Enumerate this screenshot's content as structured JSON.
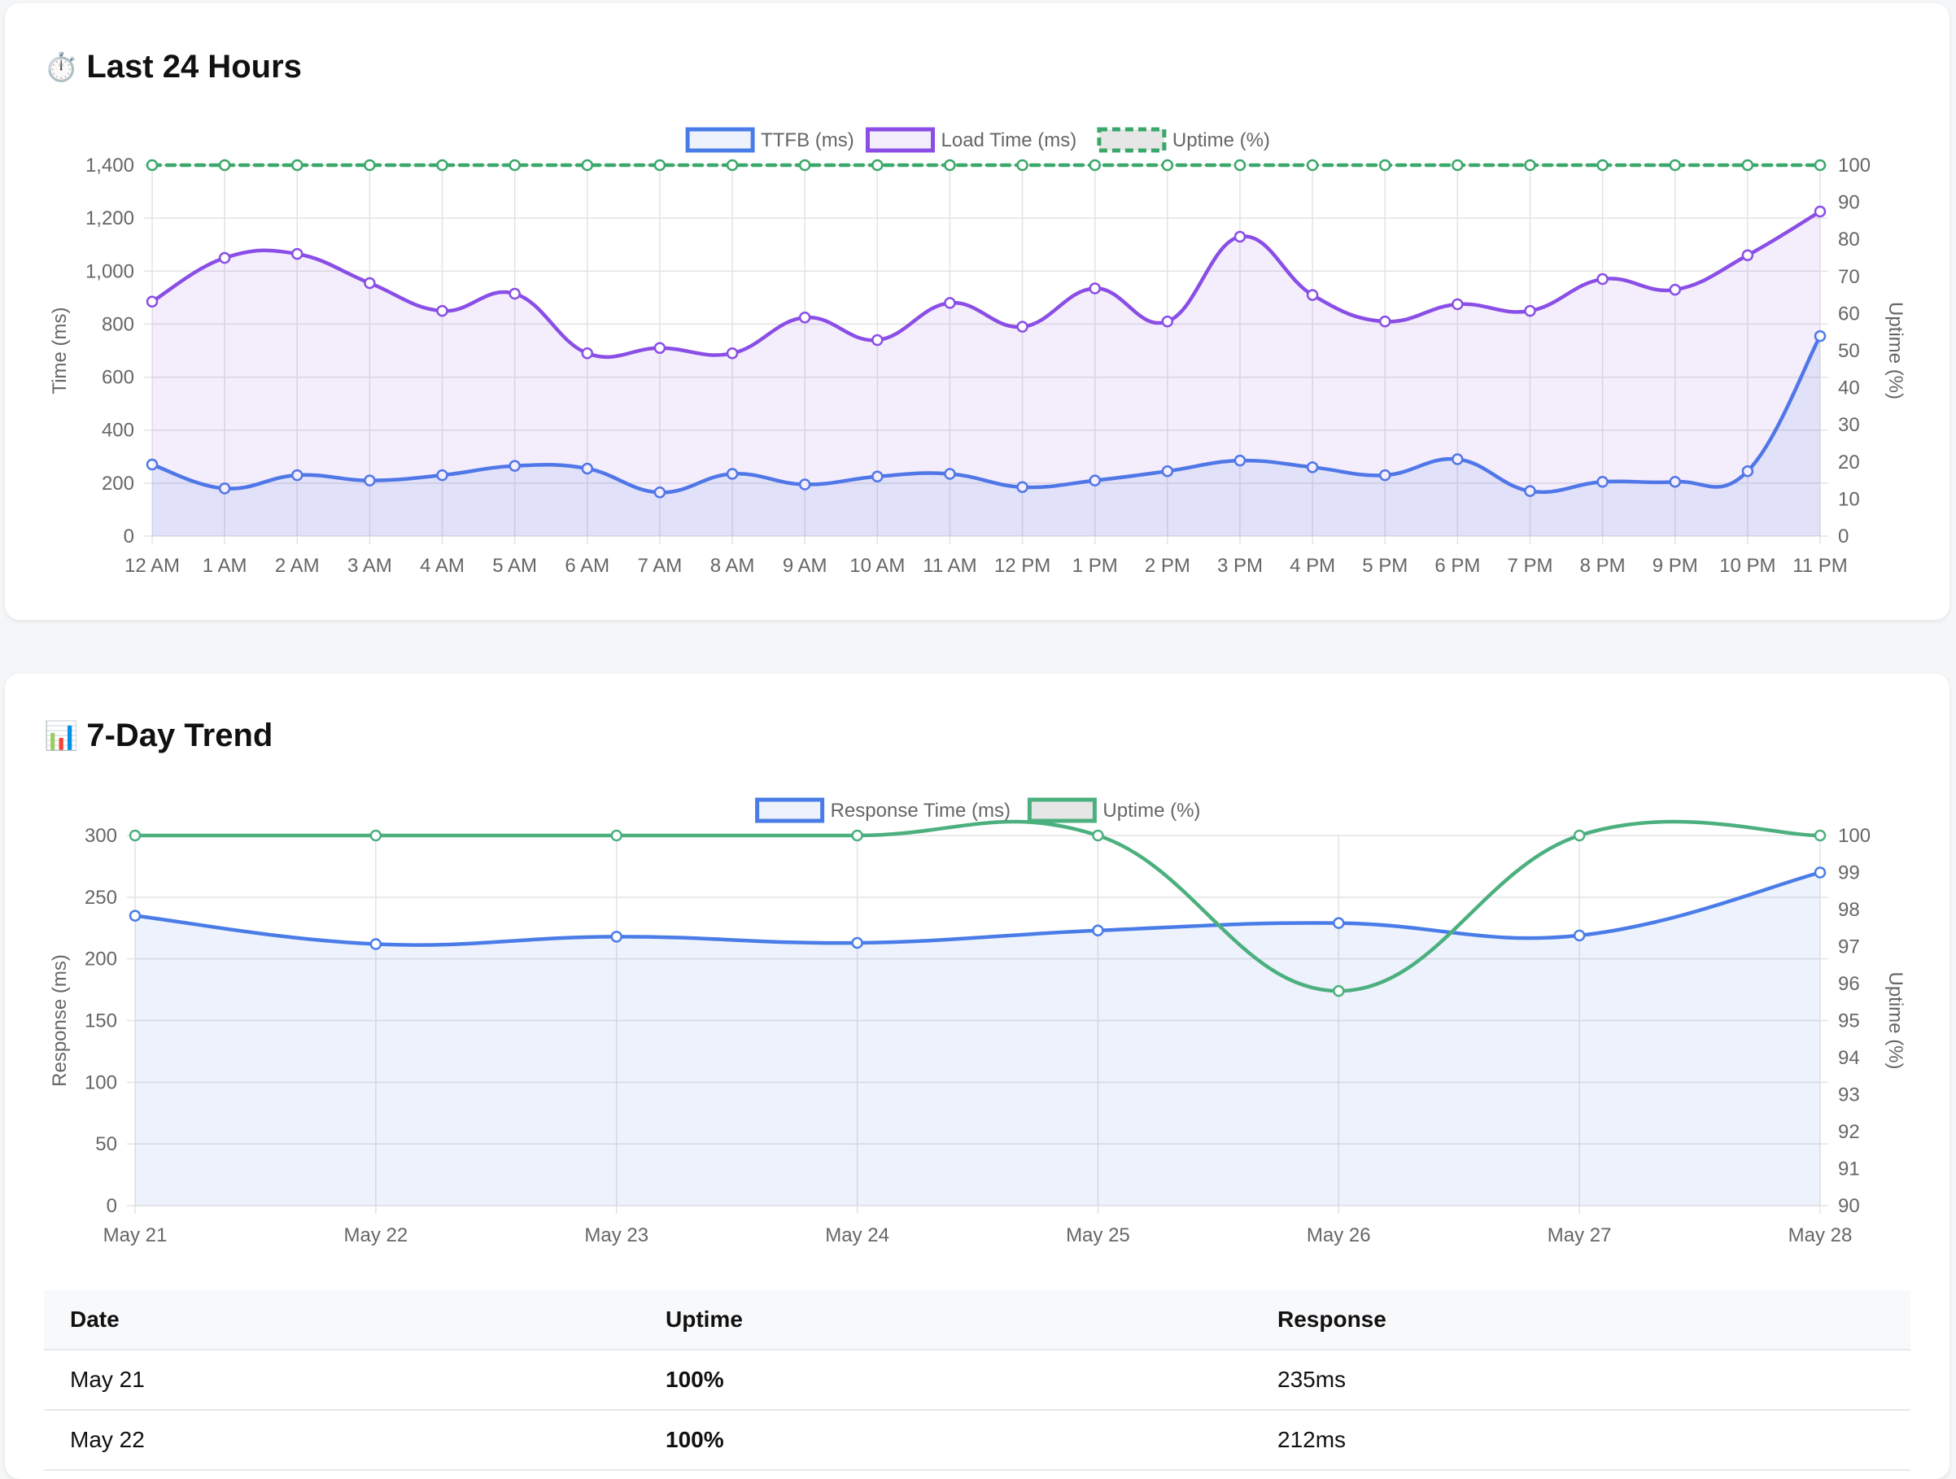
{
  "card1": {
    "icon": "⏱️",
    "icon_name": "stopwatch-icon",
    "title": "Last 24 Hours"
  },
  "card2": {
    "icon": "📊",
    "icon_name": "bar-chart-icon",
    "title": "7-Day Trend"
  },
  "chart_data": [
    {
      "type": "line",
      "x": [
        "12 AM",
        "1 AM",
        "2 AM",
        "3 AM",
        "4 AM",
        "5 AM",
        "6 AM",
        "7 AM",
        "8 AM",
        "9 AM",
        "10 AM",
        "11 AM",
        "12 PM",
        "1 PM",
        "2 PM",
        "3 PM",
        "4 PM",
        "5 PM",
        "6 PM",
        "7 PM",
        "8 PM",
        "9 PM",
        "10 PM",
        "11 PM"
      ],
      "series": [
        {
          "name": "TTFB (ms)",
          "axis": "left",
          "color": "#4a7ce8",
          "fill": true,
          "values": [
            270,
            180,
            230,
            210,
            230,
            265,
            255,
            165,
            235,
            195,
            225,
            235,
            185,
            210,
            245,
            285,
            260,
            230,
            290,
            170,
            205,
            205,
            245,
            755
          ]
        },
        {
          "name": "Load Time (ms)",
          "axis": "left",
          "color": "#8a4ee6",
          "fill": true,
          "values": [
            885,
            1050,
            1065,
            955,
            850,
            915,
            690,
            710,
            690,
            825,
            740,
            880,
            790,
            935,
            810,
            1130,
            910,
            810,
            875,
            850,
            970,
            930,
            1060,
            1225
          ]
        },
        {
          "name": "Uptime (%)",
          "axis": "right",
          "color": "#3aa86a",
          "dashed": true,
          "fill": false,
          "values": [
            100,
            100,
            100,
            100,
            100,
            100,
            100,
            100,
            100,
            100,
            100,
            100,
            100,
            100,
            100,
            100,
            100,
            100,
            100,
            100,
            100,
            100,
            100,
            100
          ]
        }
      ],
      "ylabel": "Time (ms)",
      "y2label": "Uptime (%)",
      "ylim": [
        0,
        1400
      ],
      "yticks": [
        "0",
        "200",
        "400",
        "600",
        "800",
        "1,000",
        "1,200",
        "1,400"
      ],
      "y2lim": [
        0,
        100
      ],
      "y2ticks": [
        "0",
        "10",
        "20",
        "30",
        "40",
        "50",
        "60",
        "70",
        "80",
        "90",
        "100"
      ],
      "grid": true,
      "legend": "top"
    },
    {
      "type": "line",
      "x": [
        "May 21",
        "May 22",
        "May 23",
        "May 24",
        "May 25",
        "May 26",
        "May 27",
        "May 28"
      ],
      "series": [
        {
          "name": "Response Time (ms)",
          "axis": "left",
          "color": "#4a7ce8",
          "fill": true,
          "values": [
            235,
            212,
            218,
            213,
            223,
            229,
            219,
            270
          ]
        },
        {
          "name": "Uptime (%)",
          "axis": "right",
          "color": "#4cb07e",
          "fill": false,
          "values": [
            100,
            100,
            100,
            100,
            100,
            95.8,
            100,
            100
          ]
        }
      ],
      "ylabel": "Response (ms)",
      "y2label": "Uptime (%)",
      "ylim": [
        0,
        300
      ],
      "yticks": [
        "0",
        "50",
        "100",
        "150",
        "200",
        "250",
        "300"
      ],
      "y2lim": [
        90,
        100
      ],
      "y2ticks": [
        "90",
        "91",
        "92",
        "93",
        "94",
        "95",
        "96",
        "97",
        "98",
        "99",
        "100"
      ],
      "grid": true,
      "legend": "top"
    }
  ],
  "table": {
    "headers": [
      "Date",
      "Uptime",
      "Response"
    ],
    "rows": [
      [
        "May 21",
        "100%",
        "235ms"
      ],
      [
        "May 22",
        "100%",
        "212ms"
      ]
    ],
    "uptime_color": "#3a9e4a"
  }
}
